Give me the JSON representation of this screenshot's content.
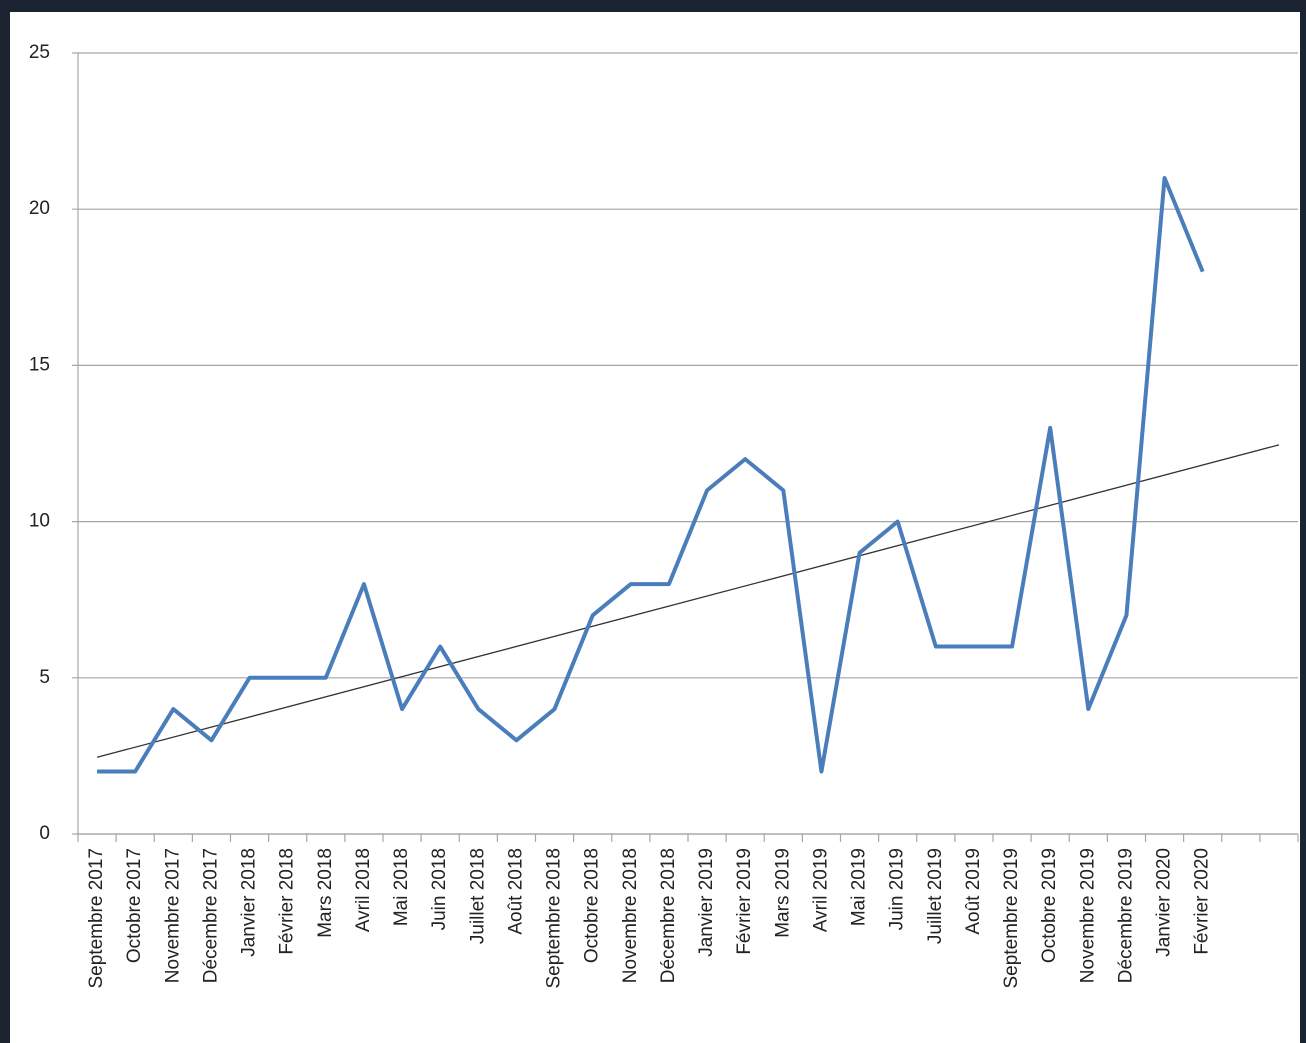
{
  "chart_data": {
    "type": "line",
    "categories": [
      "Septembre 2017",
      "Octobre 2017",
      "Novembre 2017",
      "Décembre 2017",
      "Janvier 2018",
      "Février 2018",
      "Mars 2018",
      "Avril 2018",
      "Mai 2018",
      "Juin 2018",
      "Juillet 2018",
      "Août 2018",
      "Septembre 2018",
      "Octobre 2018",
      "Novembre 2018",
      "Décembre 2018",
      "Janvier 2019",
      "Février 2019",
      "Mars 2019",
      "Avril 2019",
      "Mai 2019",
      "Juin 2019",
      "Juillet 2019",
      "Août 2019",
      "Septembre 2019",
      "Octobre 2019",
      "Novembre 2019",
      "Décembre 2019",
      "Janvier 2020",
      "Février 2020",
      null,
      null
    ],
    "values": [
      2,
      2,
      4,
      3,
      5,
      5,
      5,
      8,
      4,
      6,
      4,
      3,
      4,
      7,
      8,
      8,
      11,
      12,
      11,
      2,
      9,
      10,
      6,
      6,
      6,
      13,
      4,
      7,
      21,
      18,
      null,
      null
    ],
    "color": "#4a7ebb",
    "trendline": "linear",
    "trendline_color": "#333333",
    "ylim": [
      0,
      25
    ],
    "yticks": [
      0,
      5,
      10,
      15,
      20,
      25
    ],
    "grid": true
  }
}
